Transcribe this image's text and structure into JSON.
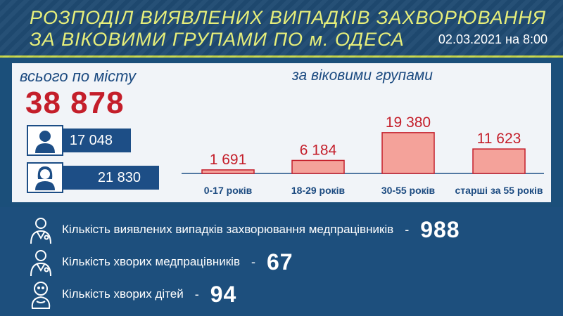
{
  "header": {
    "title_line1": "РОЗПОДІЛ ВИЯВЛЕНИХ ВИПАДКІВ ЗАХВОРЮВАННЯ",
    "title_line2": "ЗА ВІКОВИМИ ГРУПАМИ ПО м. ОДЕСА",
    "date": "02.03.2021 на 8:00"
  },
  "city": {
    "label": "всього по місту",
    "total": "38 878",
    "male": "17 048",
    "female": "21 830"
  },
  "chart_label": "за віковими групами",
  "chart_data": {
    "type": "bar",
    "title": "за віковими групами",
    "categories": [
      "0-17 років",
      "18-29 років",
      "30-55 років",
      "старші за 55 років"
    ],
    "values": [
      1691,
      6184,
      19380,
      11623
    ],
    "value_labels": [
      "1 691",
      "6 184",
      "19 380",
      "11 623"
    ],
    "ylim": [
      0,
      20000
    ],
    "bar_color": "#f4a29a",
    "bar_border": "#c41e2a",
    "label_color": "#c41e2a",
    "grid": false
  },
  "stats": [
    {
      "icon": "doctor-icon",
      "label": "Кількість виявлених випадків захворювання медпрацівників",
      "dash": "-",
      "value": "988"
    },
    {
      "icon": "doctor-icon",
      "label": "Кількість хворих медпрацівників",
      "dash": "-",
      "value": "67"
    },
    {
      "icon": "baby-icon",
      "label": "Кількість хворих дітей",
      "dash": "-",
      "value": "94"
    }
  ],
  "colors": {
    "accent_yellow": "#e7ef7a",
    "red": "#c41e2a",
    "navy": "#1d4e86"
  }
}
